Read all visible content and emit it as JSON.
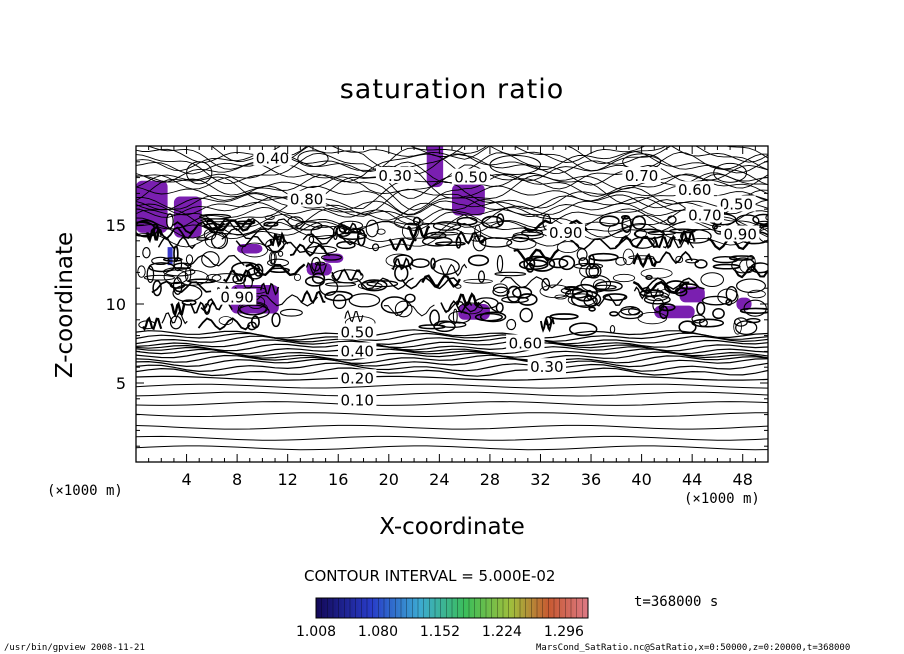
{
  "chart_data": {
    "type": "contour",
    "title": "saturation ratio",
    "xlabel": "X-coordinate",
    "ylabel": "Z-coordinate",
    "x_unit": "(×1000 m)",
    "y_unit": "(×1000 m)",
    "xlim": [
      0,
      50
    ],
    "ylim": [
      0,
      20
    ],
    "x_ticks": [
      4,
      8,
      12,
      16,
      20,
      24,
      28,
      32,
      36,
      40,
      44,
      48
    ],
    "y_ticks": [
      5,
      10,
      15
    ],
    "contour_interval_text": "CONTOUR INTERVAL = 5.000E-02",
    "contour_labels": [
      {
        "text": "0.40",
        "x": 10.8,
        "z": 19.2
      },
      {
        "text": "0.30",
        "x": 20.5,
        "z": 18.1
      },
      {
        "text": "0.50",
        "x": 26.5,
        "z": 18.0
      },
      {
        "text": "0.70",
        "x": 40.0,
        "z": 18.1
      },
      {
        "text": "0.60",
        "x": 44.2,
        "z": 17.2
      },
      {
        "text": "0.80",
        "x": 13.5,
        "z": 16.6
      },
      {
        "text": "0.50",
        "x": 47.5,
        "z": 16.3
      },
      {
        "text": "0.70",
        "x": 45.0,
        "z": 15.6
      },
      {
        "text": "0.90",
        "x": 34.0,
        "z": 14.5
      },
      {
        "text": "0.90",
        "x": 47.8,
        "z": 14.4
      },
      {
        "text": "0.90",
        "x": 8.0,
        "z": 10.4
      },
      {
        "text": "0.50",
        "x": 17.5,
        "z": 8.2
      },
      {
        "text": "0.40",
        "x": 17.5,
        "z": 7.0
      },
      {
        "text": "0.60",
        "x": 30.8,
        "z": 7.5
      },
      {
        "text": "0.30",
        "x": 32.5,
        "z": 6.0
      },
      {
        "text": "0.20",
        "x": 17.5,
        "z": 5.3
      },
      {
        "text": "0.10",
        "x": 17.5,
        "z": 3.9
      }
    ],
    "shaded_threshold": 1.0,
    "colorbar": {
      "ticks": [
        "1.008",
        "1.080",
        "1.152",
        "1.224",
        "1.296"
      ],
      "min": 1.008,
      "max": 1.324
    },
    "time_text": "t=368000 s"
  },
  "footer": {
    "left": "/usr/bin/gpview  2008-11-21",
    "right": "MarsCond_SatRatio.nc@SatRatio,x=0:50000,z=0:20000,t=368000"
  },
  "colors": {
    "shade_main": "#7a1fb0",
    "shade_edge": "#3a3acc",
    "line": "#000000"
  }
}
